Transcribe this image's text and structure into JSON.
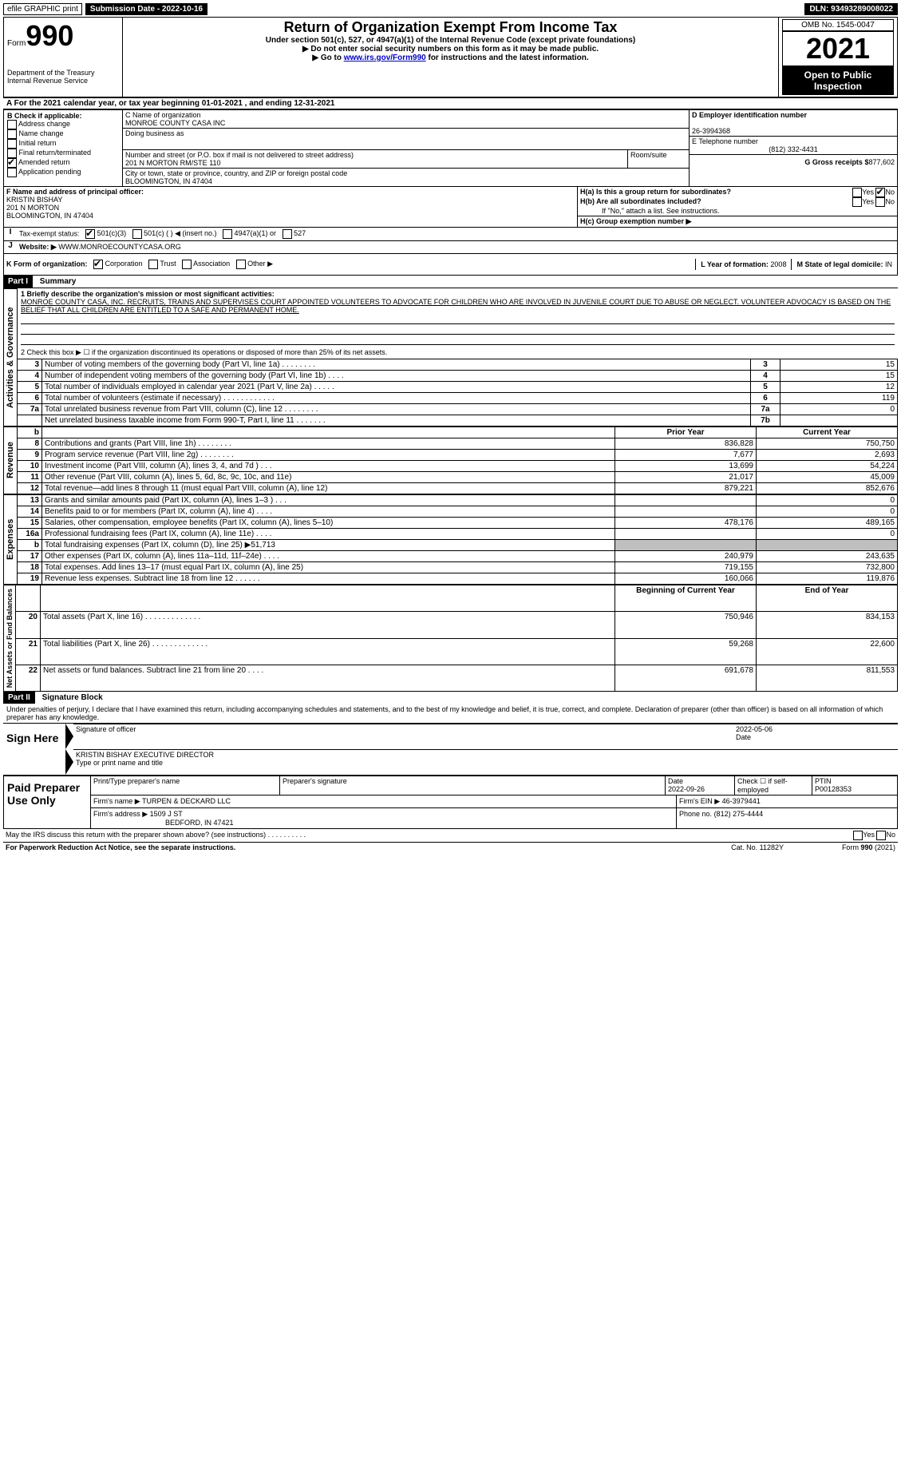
{
  "topbar": {
    "efile": "efile GRAPHIC print",
    "subdate_label": "Submission Date - 2022-10-16",
    "dln_label": "DLN: 93493289008022"
  },
  "header": {
    "form_word": "Form",
    "form_no": "990",
    "dept": "Department of the Treasury\nInternal Revenue Service",
    "title": "Return of Organization Exempt From Income Tax",
    "line1": "Under section 501(c), 527, or 4947(a)(1) of the Internal Revenue Code (except private foundations)",
    "line2": "▶ Do not enter social security numbers on this form as it may be made public.",
    "line3_pre": "▶ Go to ",
    "line3_link": "www.irs.gov/Form990",
    "line3_post": " for instructions and the latest information.",
    "omb": "OMB No. 1545-0047",
    "year": "2021",
    "open": "Open to Public Inspection"
  },
  "periodA": {
    "pre": "A For the 2021 calendar year, or tax year beginning ",
    "begin": "01-01-2021",
    "mid": " , and ending ",
    "end": "12-31-2021"
  },
  "B": {
    "label": "B Check if applicable:",
    "opts": [
      "Address change",
      "Name change",
      "Initial return",
      "Final return/terminated",
      "Amended return",
      "Application pending"
    ],
    "checked": [
      false,
      false,
      false,
      false,
      true,
      false
    ]
  },
  "C": {
    "label": "C Name of organization",
    "name": "MONROE COUNTY CASA INC",
    "dba_label": "Doing business as",
    "dba": "",
    "street_label": "Number and street (or P.O. box if mail is not delivered to street address)",
    "street": "201 N MORTON RM/STE 110",
    "room_label": "Room/suite",
    "room": "",
    "city_label": "City or town, state or province, country, and ZIP or foreign postal code",
    "city": "BLOOMINGTON, IN  47404"
  },
  "D": {
    "label": "D Employer identification number",
    "ein": "26-3994368"
  },
  "E": {
    "label": "E Telephone number",
    "phone": "(812) 332-4431"
  },
  "G": {
    "label": "G Gross receipts $",
    "val": "877,602"
  },
  "F": {
    "label": "F  Name and address of principal officer:",
    "name": "KRISTIN BISHAY",
    "addr1": "201 N MORTON",
    "addr2": "BLOOMINGTON, IN  47404"
  },
  "H": {
    "a_label": "H(a)  Is this a group return for subordinates?",
    "b_label": "H(b)  Are all subordinates included?",
    "b_note": "If \"No,\" attach a list. See instructions.",
    "c_label": "H(c)  Group exemption number ▶",
    "yes": "Yes",
    "no": "No",
    "a_no_checked": true
  },
  "I": {
    "label": "Tax-exempt status:",
    "opts": [
      "501(c)(3)",
      "501(c) (   ) ◀ (insert no.)",
      "4947(a)(1) or",
      "527"
    ],
    "checked": [
      true,
      false,
      false,
      false
    ]
  },
  "J": {
    "label": "Website: ▶",
    "val": " WWW.MONROECOUNTYCASA.ORG"
  },
  "K": {
    "label": "K Form of organization:",
    "opts": [
      "Corporation",
      "Trust",
      "Association",
      "Other ▶"
    ],
    "checked": [
      true,
      false,
      false,
      false
    ]
  },
  "L": {
    "label": "L Year of formation:",
    "val": "2008"
  },
  "M": {
    "label": "M State of legal domicile:",
    "val": "IN"
  },
  "part1": {
    "bar": "Part I",
    "title": "Summary",
    "l1_label": "1  Briefly describe the organization's mission or most significant activities:",
    "l1_text": "MONROE COUNTY CASA, INC. RECRUITS, TRAINS AND SUPERVISES COURT APPOINTED VOLUNTEERS TO ADVOCATE FOR CHILDREN WHO ARE INVOLVED IN JUVENILE COURT DUE TO ABUSE OR NEGLECT. VOLUNTEER ADVOCACY IS BASED ON THE BELIEF THAT ALL CHILDREN ARE ENTITLED TO A SAFE AND PERMANENT HOME.",
    "l2": "2  Check this box ▶ ☐  if the organization discontinued its operations or disposed of more than 25% of its net assets.",
    "rows_ag": [
      {
        "n": "3",
        "t": "Number of voting members of the governing body (Part VI, line 1a)   .     .     .     .     .     .     .     .",
        "box": "3",
        "v": "15"
      },
      {
        "n": "4",
        "t": "Number of independent voting members of the governing body (Part VI, line 1b)    .     .     .     .",
        "box": "4",
        "v": "15"
      },
      {
        "n": "5",
        "t": "Total number of individuals employed in calendar year 2021 (Part V, line 2a)   .     .     .     .     .",
        "box": "5",
        "v": "12"
      },
      {
        "n": "6",
        "t": "Total number of volunteers (estimate if necessary)    .     .     .     .     .     .     .     .     .     .     .     .",
        "box": "6",
        "v": "119"
      },
      {
        "n": "7a",
        "t": "Total unrelated business revenue from Part VIII, column (C), line 12   .     .     .     .     .     .     .     .",
        "box": "7a",
        "v": "0"
      },
      {
        "n": "",
        "t": "Net unrelated business taxable income from Form 990-T, Part I, line 11   .     .     .     .     .     .     .",
        "box": "7b",
        "v": ""
      }
    ],
    "hdr_b": "b",
    "hdr_prior": "Prior Year",
    "hdr_curr": "Current Year",
    "rev": [
      {
        "n": "8",
        "t": "Contributions and grants (Part VIII, line 1h)   .     .     .     .     .     .     .     .",
        "p": "836,828",
        "c": "750,750"
      },
      {
        "n": "9",
        "t": "Program service revenue (Part VIII, line 2g)   .     .     .     .     .     .     .     .",
        "p": "7,677",
        "c": "2,693"
      },
      {
        "n": "10",
        "t": "Investment income (Part VIII, column (A), lines 3, 4, and 7d )    .     .     .",
        "p": "13,699",
        "c": "54,224"
      },
      {
        "n": "11",
        "t": "Other revenue (Part VIII, column (A), lines 5, 6d, 8c, 9c, 10c, and 11e)",
        "p": "21,017",
        "c": "45,009"
      },
      {
        "n": "12",
        "t": "Total revenue—add lines 8 through 11 (must equal Part VIII, column (A), line 12)",
        "p": "879,221",
        "c": "852,676"
      }
    ],
    "exp": [
      {
        "n": "13",
        "t": "Grants and similar amounts paid (Part IX, column (A), lines 1–3 )   .     .     .",
        "p": "",
        "c": "0"
      },
      {
        "n": "14",
        "t": "Benefits paid to or for members (Part IX, column (A), line 4)   .     .     .     .",
        "p": "",
        "c": "0"
      },
      {
        "n": "15",
        "t": "Salaries, other compensation, employee benefits (Part IX, column (A), lines 5–10)",
        "p": "478,176",
        "c": "489,165"
      },
      {
        "n": "16a",
        "t": "Professional fundraising fees (Part IX, column (A), line 11e)    .     .     .     .",
        "p": "",
        "c": "0"
      },
      {
        "n": "b",
        "t": "Total fundraising expenses (Part IX, column (D), line 25) ▶51,713",
        "p": "GREY",
        "c": "GREY"
      },
      {
        "n": "17",
        "t": "Other expenses (Part IX, column (A), lines 11a–11d, 11f–24e)   .     .     .     .",
        "p": "240,979",
        "c": "243,635"
      },
      {
        "n": "18",
        "t": "Total expenses. Add lines 13–17 (must equal Part IX, column (A), line 25)",
        "p": "719,155",
        "c": "732,800"
      },
      {
        "n": "19",
        "t": "Revenue less expenses. Subtract line 18 from line 12   .     .     .     .     .     .",
        "p": "160,066",
        "c": "119,876"
      }
    ],
    "hdr_boy": "Beginning of Current Year",
    "hdr_eoy": "End of Year",
    "na": [
      {
        "n": "20",
        "t": "Total assets (Part X, line 16)   .     .     .     .     .     .     .     .     .     .     .     .     .",
        "p": "750,946",
        "c": "834,153"
      },
      {
        "n": "21",
        "t": "Total liabilities (Part X, line 26)   .     .     .     .     .     .     .     .     .     .     .     .     .",
        "p": "59,268",
        "c": "22,600"
      },
      {
        "n": "22",
        "t": "Net assets or fund balances. Subtract line 21 from line 20    .     .     .     .",
        "p": "691,678",
        "c": "811,553"
      }
    ],
    "side": {
      "ag": "Activities & Governance",
      "rev": "Revenue",
      "exp": "Expenses",
      "na": "Net Assets or Fund Balances"
    }
  },
  "part2": {
    "bar": "Part II",
    "title": "Signature Block",
    "decl": "Under penalties of perjury, I declare that I have examined this return, including accompanying schedules and statements, and to the best of my knowledge and belief, it is true, correct, and complete. Declaration of preparer (other than officer) is based on all information of which preparer has any knowledge."
  },
  "sign": {
    "here": "Sign Here",
    "sig_label": "Signature of officer",
    "date_label": "Date",
    "date": "2022-05-06",
    "typed": "KRISTIN BISHAY  EXECUTIVE DIRECTOR",
    "typed_label": "Type or print name and title"
  },
  "paid": {
    "label": "Paid Preparer Use Only",
    "h1": "Print/Type preparer's name",
    "h2": "Preparer's signature",
    "h3": "Date",
    "h4": "Check ☐ if self-employed",
    "h5": "PTIN",
    "date": "2022-09-26",
    "ptin": "P00128353",
    "firm_name_l": "Firm's name    ▶",
    "firm_name": "TURPEN & DECKARD LLC",
    "firm_ein_l": "Firm's EIN ▶",
    "firm_ein": "46-3979441",
    "firm_addr_l": "Firm's address ▶",
    "firm_addr1": "1509 J ST",
    "firm_addr2": "BEDFORD, IN  47421",
    "phone_l": "Phone no.",
    "phone": "(812) 275-4444"
  },
  "foot": {
    "q": "May the IRS discuss this return with the preparer shown above? (see instructions)    .     .     .     .     .     .     .     .     .     .",
    "yes": "Yes",
    "no": "No",
    "l": "For Paperwork Reduction Act Notice, see the separate instructions.",
    "cat": "Cat. No. 11282Y",
    "r": "Form 990 (2021)"
  }
}
